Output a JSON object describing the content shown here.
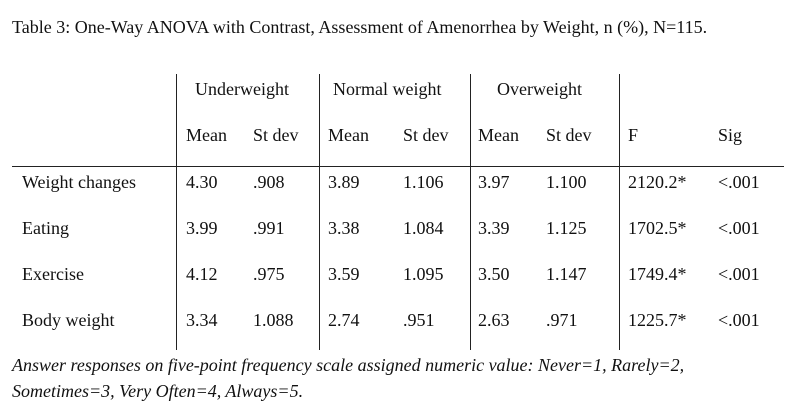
{
  "caption": "Table 3: One-Way ANOVA with Contrast, Assessment of Amenorrhea by Weight, n (%), N=115.",
  "groups": [
    "Underweight",
    "Normal weight",
    "Overweight"
  ],
  "subheaders": {
    "mean": "Mean",
    "stdev": "St dev",
    "f": "F",
    "sig": "Sig"
  },
  "rows": [
    {
      "label": "Weight changes",
      "values": [
        "4.30",
        ".908",
        "3.89",
        "1.106",
        "3.97",
        "1.100",
        "2120.2*",
        "<.001"
      ]
    },
    {
      "label": "Eating",
      "values": [
        "3.99",
        ".991",
        "3.38",
        "1.084",
        "3.39",
        "1.125",
        "1702.5*",
        "<.001"
      ]
    },
    {
      "label": "Exercise",
      "values": [
        "4.12",
        ".975",
        "3.59",
        "1.095",
        "3.50",
        "1.147",
        "1749.4*",
        "<.001"
      ]
    },
    {
      "label": "Body weight",
      "values": [
        "3.34",
        "1.088",
        "2.74",
        ".951",
        "2.63",
        ".971",
        "1225.7*",
        "<.001"
      ]
    }
  ],
  "note_line1": "Answer responses on five-point frequency scale assigned numeric value: Never=1, Rarely=2,",
  "note_line2": "Sometimes=3, Very Often=4, Always=5."
}
